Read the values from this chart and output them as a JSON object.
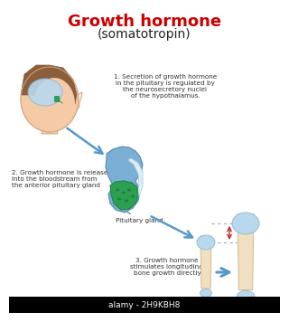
{
  "title_line1": "Growth hormone",
  "title_line2": "(somatotropin)",
  "title_color": "#cc0000",
  "subtitle_color": "#222222",
  "bg_color": "#ffffff",
  "text1": "1. Secretion of growth hormone\nin the pituitary is regulated by\nthe neurosecretory nuclei\nof the hypothalamus.",
  "text2": "2. Growth hormone is released\ninto the bloodstream from\nthe anterior pituitary gland",
  "text3": "3. Growth hormone\nstimulates longitudinal\nbone growth directly",
  "label_pituitary": "Pituitary gland",
  "head_skin_color": "#f5cba7",
  "head_hair_color": "#8b5e3c",
  "brain_color": "#b8d8ed",
  "pituitary_outer_color": "#7bafd4",
  "pituitary_inner_color": "#2e9e50",
  "pituitary_white_color": "#e8e8e8",
  "bone_shaft_color": "#f0e0c0",
  "bone_head_color": "#b8d8ed",
  "bone_outline_color": "#d4b896",
  "arrow_color": "#5599cc",
  "red_arrow_color": "#cc2222",
  "dotted_line_color": "#aaaaaa",
  "text_color": "#333333",
  "watermark": "alamy - 2H9KBH8"
}
